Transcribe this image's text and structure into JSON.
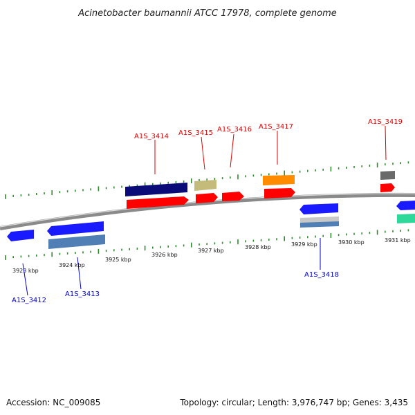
{
  "title": "Acinetobacter baumannii ATCC 17978, complete genome",
  "footer": {
    "accession": "Accession: NC_009085",
    "summary": "Topology: circular; Length: 3,976,747 bp; Genes: 3,435"
  },
  "colors": {
    "tick": "#2e8b2e",
    "backbone": "#8a8a8a",
    "label_top": "#dd0000",
    "label_bottom": "#0000cc",
    "block_red": "#ff0000",
    "block_navy": "#0a0a78",
    "block_blue": "#1a1aff",
    "block_steel": "#4f7fb5",
    "block_khaki": "#c4ba7a",
    "block_orange": "#ff8c00",
    "block_gray": "#6a6a6a",
    "block_silver": "#c8c8c8",
    "block_mint": "#2ed79a"
  },
  "scale": {
    "unit": "kbp",
    "labels": [
      "3923 kbp",
      "3924 kbp",
      "3925 kbp",
      "3926 kbp",
      "3927 kbp",
      "3928 kbp",
      "3929 kbp",
      "3930 kbp",
      "3931 kbp"
    ]
  },
  "gene_labels": {
    "top": [
      "A1S_3414",
      "A1S_3415",
      "A1S_3416",
      "A1S_3417",
      "A1S_3419"
    ],
    "bottom": [
      "A1S_3412",
      "A1S_3413",
      "A1S_3418"
    ]
  }
}
